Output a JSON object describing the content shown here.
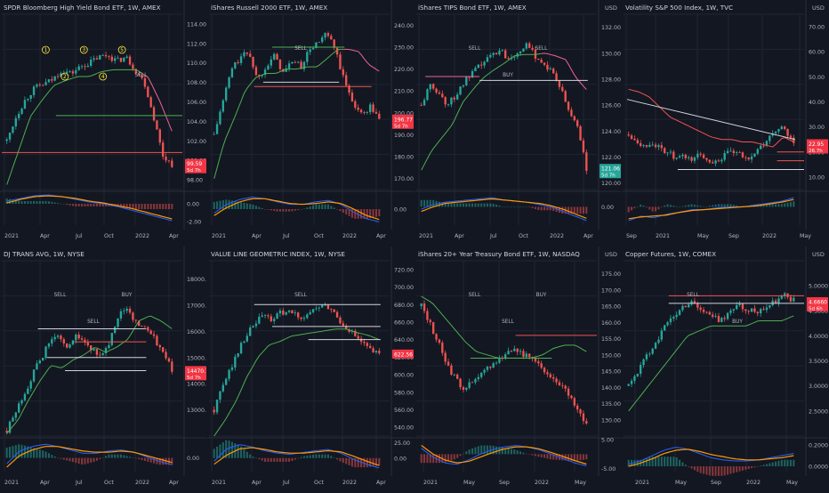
{
  "colors": {
    "background": "#131722",
    "grid": "#1f2433",
    "divider": "#2a2e39",
    "text": "#b2b5be",
    "title": "#d1d4dc",
    "candle_up": "#26a69a",
    "candle_down": "#ef5350",
    "stop_up": "#4caf50",
    "stop_down": "#f06292",
    "macd": "#2962ff",
    "signal": "#ff9800",
    "price_up_badge": "#26a69a",
    "price_down_badge": "#f23645"
  },
  "chart_data": [
    {
      "type": "candlestick",
      "title": "SPDR Bloomberg High Yield Bond ETF, 1W, AMEX",
      "y_ticks": [
        "114.00",
        "112.00",
        "110.00",
        "108.00",
        "106.00",
        "104.00",
        "102.00",
        "100.00",
        "98.00"
      ],
      "ylim": [
        97,
        115
      ],
      "x_ticks": [
        {
          "label": "2021",
          "x": 5
        },
        {
          "label": "Apr",
          "x": 45
        },
        {
          "label": "Jul",
          "x": 85
        },
        {
          "label": "Oct",
          "x": 117
        },
        {
          "label": "2022",
          "x": 152
        },
        {
          "label": "Apr",
          "x": 190
        }
      ],
      "osc_ticks": [
        "0.00",
        "-2.00"
      ],
      "price": {
        "label": "99.59",
        "time": "5d 7h",
        "dir": "down",
        "value": 99.59
      },
      "path": [
        102,
        104.5,
        106.2,
        107.4,
        107.8,
        108.3,
        109.3,
        108.9,
        109.6,
        110,
        110.6,
        110.8,
        110.2,
        110.6,
        109.3,
        108,
        104.5,
        100.5,
        99.6
      ],
      "stop": [
        97.5,
        101,
        104.5,
        106.2,
        107.7,
        108.2,
        108.6,
        108.6,
        109.1,
        109.3,
        109.3,
        109.3,
        108.5,
        106,
        103
      ],
      "stop_switch": 12,
      "hlines": [
        {
          "y": 104.6,
          "x0": 0.3,
          "x1": 1,
          "color": "#4caf50"
        },
        {
          "y": 100.8,
          "x0": 0,
          "x1": 1,
          "color": "#ef5350"
        }
      ],
      "annotations": [
        "1",
        "2",
        "3",
        "4",
        "5",
        "SELL"
      ],
      "macd": [
        0.3,
        0.6,
        0.9,
        1,
        0.8,
        0.5,
        0.2,
        0,
        -0.3,
        -0.7,
        -1.1,
        -1.5,
        -1.9
      ],
      "signal": [
        0.1,
        0.5,
        0.8,
        0.9,
        0.8,
        0.6,
        0.3,
        0.1,
        -0.2,
        -0.5,
        -0.9,
        -1.3,
        -1.7
      ],
      "osc_range": [
        -2.4,
        1.2
      ]
    },
    {
      "type": "candlestick",
      "title": "iShares Russell 2000 ETF, 1W, AMEX",
      "y_ticks": [
        "240.00",
        "230.00",
        "220.00",
        "210.00",
        "200.00",
        "190.00",
        "180.00",
        "170.00"
      ],
      "ylim": [
        165,
        245
      ],
      "x_ticks": [
        {
          "label": "2021",
          "x": 5
        },
        {
          "label": "Apr",
          "x": 50
        },
        {
          "label": "Jul",
          "x": 85
        },
        {
          "label": "Oct",
          "x": 120
        },
        {
          "label": "2022",
          "x": 152
        },
        {
          "label": "Apr",
          "x": 190
        }
      ],
      "osc_ticks": [
        "0.00"
      ],
      "price": {
        "label": "196.77",
        "time": "5d 7h",
        "dir": "down",
        "value": 196.77
      },
      "path": [
        190,
        205,
        220,
        225,
        228,
        215,
        222,
        226,
        218,
        224,
        221,
        229,
        232,
        236,
        228,
        214,
        205,
        199,
        203,
        197
      ],
      "stop": [
        170,
        187,
        198,
        210,
        216,
        218,
        218,
        220,
        220,
        221,
        221,
        225,
        229,
        229,
        228,
        222,
        219
      ],
      "stop_switch": 13,
      "hlines": [
        {
          "y": 214,
          "x0": 0.3,
          "x1": 0.72,
          "color": "#d1d4dc"
        },
        {
          "y": 212,
          "x0": 0.25,
          "x1": 0.9,
          "color": "#ef5350"
        },
        {
          "y": 230,
          "x0": 0.35,
          "x1": 0.75,
          "color": "#4caf50"
        }
      ],
      "annotations": [
        "SELL"
      ],
      "macd": [
        -0.5,
        0.6,
        1.2,
        1.5,
        1.3,
        0.9,
        0.6,
        0.6,
        0.9,
        1.1,
        0.6,
        -0.4,
        -1.2,
        -1.6
      ],
      "signal": [
        -0.8,
        0.2,
        0.9,
        1.3,
        1.3,
        1,
        0.7,
        0.6,
        0.7,
        0.9,
        0.7,
        0,
        -0.8,
        -1.3
      ],
      "osc_range": [
        -2,
        2
      ]
    },
    {
      "type": "candlestick",
      "title": "iShares TIPS Bond ETF, 1W, AMEX",
      "y_ticks": [
        "132.00",
        "130.00",
        "128.00",
        "126.00",
        "124.00",
        "122.00",
        "120.00"
      ],
      "ylim": [
        119.5,
        133
      ],
      "x_ticks": [
        {
          "label": "2021",
          "x": 5
        },
        {
          "label": "Apr",
          "x": 45
        },
        {
          "label": "Jul",
          "x": 85
        },
        {
          "label": "Oct",
          "x": 117
        },
        {
          "label": "2022",
          "x": 152
        },
        {
          "label": "Apr",
          "x": 190
        }
      ],
      "osc_ticks": [
        "0.00"
      ],
      "price": {
        "label": "121.06",
        "time": "5d 7h",
        "dir": "up",
        "value": 121.06
      },
      "path": [
        126,
        127.5,
        127,
        126,
        126.8,
        127.8,
        128.5,
        129.2,
        129.8,
        130.3,
        129.6,
        130.1,
        130.6,
        129.9,
        129.2,
        128.6,
        127.3,
        125.5,
        124.4,
        121.1
      ],
      "stop": [
        121,
        122.5,
        123.5,
        124.5,
        126.2,
        127.2,
        128.1,
        128.7,
        129.2,
        129.8,
        129.9,
        129.9,
        130,
        129.8,
        129.5,
        128.1,
        127.2
      ],
      "stop_switch": 12,
      "hlines": [
        {
          "y": 127.9,
          "x0": 0.35,
          "x1": 0.95,
          "color": "#d1d4dc"
        },
        {
          "y": 128.2,
          "x0": 0.05,
          "x1": 0.35,
          "color": "#f06292"
        }
      ],
      "annotations": [
        "SELL",
        "BUY",
        "SELL"
      ],
      "macd": [
        -0.2,
        0.2,
        0.4,
        0.5,
        0.6,
        0.7,
        0.8,
        0.6,
        0.5,
        0.4,
        0.2,
        0,
        -0.4,
        -0.8,
        -1.2
      ],
      "signal": [
        -0.4,
        0,
        0.3,
        0.4,
        0.5,
        0.6,
        0.7,
        0.6,
        0.5,
        0.4,
        0.3,
        0.1,
        -0.2,
        -0.6,
        -1
      ],
      "osc_range": [
        -1.6,
        1.2
      ]
    },
    {
      "type": "candlestick",
      "title": "Volatility S&P 500 Index, 1W, TVC",
      "y_ticks": [
        "70.00",
        "60.00",
        "50.00",
        "40.00",
        "30.00",
        "20.00",
        "10.00"
      ],
      "ylim": [
        5,
        75
      ],
      "x_ticks": [
        {
          "label": "Sep",
          "x": 5
        },
        {
          "label": "2021",
          "x": 38
        },
        {
          "label": "May",
          "x": 85
        },
        {
          "label": "Sep",
          "x": 120
        },
        {
          "label": "2022",
          "x": 158
        },
        {
          "label": "May",
          "x": 200
        }
      ],
      "osc_ticks": [],
      "price": {
        "label": "22.95",
        "time": "26.7h",
        "dir": "down",
        "value": 22.95
      },
      "path": [
        27,
        25,
        22,
        24,
        21,
        20,
        17,
        18,
        17,
        19,
        17,
        16,
        18,
        20,
        19,
        17,
        20,
        22,
        26,
        30,
        28,
        23
      ],
      "stop": [
        45,
        44,
        42,
        38,
        34,
        32,
        30,
        28,
        26,
        25,
        25,
        24,
        24,
        23,
        22,
        26,
        24
      ],
      "stop_switch": 99,
      "hlines": [
        {
          "y": 20,
          "x0": 0.85,
          "x1": 1,
          "color": "#ef5350"
        },
        {
          "y": 16.5,
          "x0": 0.85,
          "x1": 1,
          "color": "#ef5350"
        },
        {
          "y": 13,
          "x0": 0.3,
          "x1": 1,
          "color": "#d1d4dc"
        }
      ],
      "trendline": [
        {
          "x": 0.02,
          "y": 41
        },
        {
          "x": 0.95,
          "y": 25
        }
      ],
      "annotations": [],
      "macd": [
        -1.5,
        -1,
        -1.2,
        -0.8,
        -0.6,
        -0.3,
        -0.3,
        -0.1,
        0,
        0,
        0.2,
        0.4,
        0.6,
        1
      ],
      "signal": [
        -1.3,
        -1.1,
        -1,
        -0.9,
        -0.6,
        -0.4,
        -0.3,
        -0.2,
        -0.1,
        0,
        0.1,
        0.3,
        0.5,
        0.8
      ],
      "osc_range": [
        -2,
        1.5
      ]
    },
    {
      "type": "candlestick",
      "title": "DJ TRANS AVG, 1W, NYSE",
      "y_ticks": [
        "18000.00",
        "17000.00",
        "16000.00",
        "15000.00",
        "14000.00",
        "13000.00"
      ],
      "ylim": [
        12000,
        18700
      ],
      "x_ticks": [
        {
          "label": "2021",
          "x": 5
        },
        {
          "label": "Apr",
          "x": 45
        },
        {
          "label": "Jul",
          "x": 85
        },
        {
          "label": "Oct",
          "x": 117
        },
        {
          "label": "2022",
          "x": 152
        },
        {
          "label": "Apr",
          "x": 190
        }
      ],
      "osc_ticks": [
        "0.00"
      ],
      "price": {
        "label": "14470.72",
        "time": "5d 7h",
        "dir": "down",
        "value": 14470.72
      },
      "path": [
        12200,
        13000,
        13800,
        14600,
        15300,
        15900,
        15400,
        15800,
        15600,
        15200,
        15100,
        16000,
        16900,
        16500,
        16200,
        15800,
        15300,
        14500
      ],
      "stop": [
        12100,
        12600,
        13400,
        14100,
        14700,
        14600,
        14900,
        15100,
        15400,
        15200,
        15400,
        15700,
        16400,
        16600,
        16400,
        16100
      ],
      "stop_switch": 99,
      "hlines": [
        {
          "y": 16100,
          "x0": 0.2,
          "x1": 0.8,
          "color": "#d1d4dc"
        },
        {
          "y": 15000,
          "x0": 0.25,
          "x1": 0.8,
          "color": "#d1d4dc"
        },
        {
          "y": 14500,
          "x0": 0.35,
          "x1": 0.8,
          "color": "#d1d4dc"
        },
        {
          "y": 15600,
          "x0": 0.4,
          "x1": 0.8,
          "color": "#ef5350"
        }
      ],
      "annotations": [
        "SELL",
        "SELL",
        "BUY"
      ],
      "macd": [
        -0.5,
        0.6,
        1,
        1.2,
        1,
        0.7,
        0.4,
        0.4,
        0.6,
        0.7,
        0.5,
        0.1,
        -0.3,
        -0.6
      ],
      "signal": [
        -0.8,
        0.2,
        0.7,
        1,
        1,
        0.8,
        0.6,
        0.5,
        0.5,
        0.6,
        0.5,
        0.2,
        -0.1,
        -0.4
      ],
      "osc_range": [
        -1.2,
        1.6
      ]
    },
    {
      "type": "candlestick",
      "title": "VALUE LINE GEOMETRIC INDEX, 1W, NYSE",
      "y_ticks": [
        "720.00",
        "700.00",
        "680.00",
        "660.00",
        "640.00",
        "620.00",
        "600.00",
        "580.00",
        "560.00",
        "540.00"
      ],
      "ylim": [
        530,
        730
      ],
      "x_ticks": [
        {
          "label": "2021",
          "x": 5
        },
        {
          "label": "Apr",
          "x": 50
        },
        {
          "label": "Jul",
          "x": 85
        },
        {
          "label": "Oct",
          "x": 120
        },
        {
          "label": "2022",
          "x": 152
        },
        {
          "label": "Apr",
          "x": 190
        }
      ],
      "osc_ticks": [
        "25.00",
        "0.00"
      ],
      "price": {
        "label": "622.56",
        "time": "",
        "dir": "down",
        "value": 622.56
      },
      "path": [
        560,
        590,
        615,
        640,
        655,
        668,
        662,
        672,
        670,
        665,
        672,
        678,
        675,
        660,
        650,
        638,
        628,
        622
      ],
      "stop": [
        530,
        548,
        570,
        598,
        620,
        634,
        638,
        644,
        646,
        648,
        650,
        652,
        652,
        648,
        645,
        640
      ],
      "stop_switch": 99,
      "hlines": [
        {
          "y": 680,
          "x0": 0.25,
          "x1": 0.95,
          "color": "#d1d4dc"
        },
        {
          "y": 655,
          "x0": 0.35,
          "x1": 0.95,
          "color": "#d1d4dc"
        },
        {
          "y": 640,
          "x0": 0.55,
          "x1": 0.95,
          "color": "#d1d4dc"
        }
      ],
      "annotations": [
        "SELL"
      ],
      "macd": [
        -5,
        15,
        22,
        18,
        12,
        8,
        6,
        9,
        12,
        14,
        8,
        -2,
        -10,
        -16
      ],
      "signal": [
        -10,
        5,
        15,
        17,
        14,
        10,
        8,
        8,
        10,
        12,
        10,
        3,
        -5,
        -12
      ],
      "osc_range": [
        -22,
        30
      ]
    },
    {
      "type": "candlestick",
      "title": "iShares 20+ Year Treasury Bond ETF, 1W, NASDAQ",
      "y_ticks": [
        "175.00",
        "170.00",
        "165.00",
        "160.00",
        "155.00",
        "150.00",
        "145.00",
        "140.00",
        "135.00",
        "130.00"
      ],
      "ylim": [
        125,
        179
      ],
      "x_ticks": [
        {
          "label": "2021",
          "x": 10
        },
        {
          "label": "May",
          "x": 55
        },
        {
          "label": "Sep",
          "x": 95
        },
        {
          "label": "2022",
          "x": 135
        },
        {
          "label": "May",
          "x": 180
        }
      ],
      "osc_ticks": [
        "5.00",
        "-5.00"
      ],
      "price": {
        "label": "",
        "time": "",
        "dir": "up",
        "value": 129
      },
      "path": [
        165,
        160,
        154,
        148,
        143,
        140,
        141,
        143,
        146,
        148,
        150,
        152,
        151,
        149,
        147,
        145,
        143,
        141,
        137,
        133,
        129
      ],
      "stop": [
        168,
        166,
        162,
        158,
        154,
        151,
        150,
        149,
        149,
        149,
        149,
        150,
        152,
        153,
        153,
        151
      ],
      "stop_switch": 99,
      "hlines": [
        {
          "y": 149,
          "x0": 0.3,
          "x1": 0.75,
          "color": "#4caf50"
        },
        {
          "y": 156,
          "x0": 0.55,
          "x1": 1,
          "color": "#ef5350"
        }
      ],
      "annotations": [
        "SELL",
        "SELL",
        "BUY"
      ],
      "macd": [
        2,
        -1,
        -3,
        -3.5,
        -2,
        0,
        1.5,
        2.5,
        3,
        2.5,
        1.5,
        0,
        -1.5,
        -3,
        -4
      ],
      "signal": [
        3,
        0,
        -2,
        -3,
        -2.5,
        -1,
        0.5,
        1.8,
        2.5,
        2.5,
        1.8,
        0.6,
        -0.8,
        -2.2,
        -3.4
      ],
      "osc_range": [
        -6,
        5
      ]
    },
    {
      "type": "candlestick",
      "title": "Copper Futures, 1W, COMEX",
      "y_ticks": [
        "5.0000",
        "4.5000",
        "4.0000",
        "3.5000",
        "3.0000",
        "2.5000"
      ],
      "y_ticks_left": [
        "175.00",
        "170.00",
        "165.00",
        "160.00",
        "155.00",
        "150.00",
        "145.00",
        "140.00",
        "135.00",
        "130.00"
      ],
      "ylim": [
        2.0,
        5.5
      ],
      "x_ticks": [
        {
          "label": "2021",
          "x": 15
        },
        {
          "label": "May",
          "x": 60
        },
        {
          "label": "Sep",
          "x": 100
        },
        {
          "label": "2022",
          "x": 140
        },
        {
          "label": "May",
          "x": 185
        }
      ],
      "osc_ticks": [
        "0.2000",
        "0.0000"
      ],
      "price": {
        "label": "4.6660",
        "time": "5d 6h",
        "dir": "down",
        "value": 4.666
      },
      "path": [
        3,
        3.3,
        3.6,
        3.9,
        4.2,
        4.4,
        4.6,
        4.7,
        4.5,
        4.4,
        4.3,
        4.5,
        4.6,
        4.5,
        4.5,
        4.6,
        4.7,
        4.8,
        4.7
      ],
      "stop": [
        2.5,
        2.8,
        3.1,
        3.4,
        3.7,
        4,
        4.1,
        4.2,
        4.2,
        4.2,
        4.2,
        4.3,
        4.3,
        4.3,
        4.4
      ],
      "stop_switch": 99,
      "hlines": [
        {
          "y": 4.8,
          "x0": 0.25,
          "x1": 1,
          "color": "#ef5350"
        },
        {
          "y": 4.65,
          "x0": 0.25,
          "x1": 1,
          "color": "#d1d4dc"
        }
      ],
      "annotations": [
        "SELL",
        "BUY"
      ],
      "macd": [
        0.02,
        0.05,
        0.1,
        0.15,
        0.18,
        0.16,
        0.12,
        0.08,
        0.06,
        0.05,
        0.05,
        0.06,
        0.08,
        0.1,
        0.12
      ],
      "signal": [
        0,
        0.03,
        0.07,
        0.12,
        0.15,
        0.16,
        0.14,
        0.11,
        0.09,
        0.07,
        0.06,
        0.06,
        0.07,
        0.08,
        0.1
      ],
      "osc_range": [
        -0.05,
        0.25
      ]
    }
  ]
}
